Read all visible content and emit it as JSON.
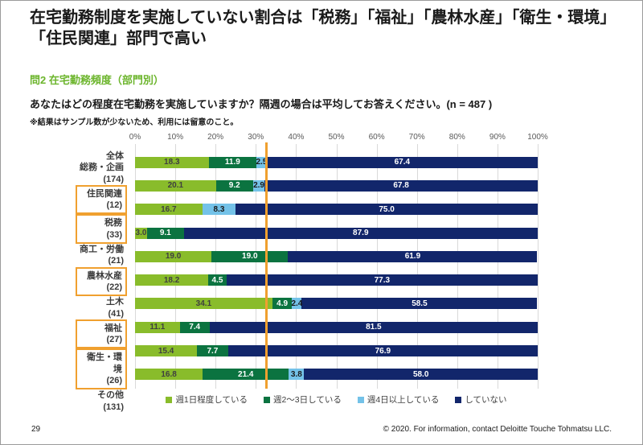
{
  "slide": {
    "title": "在宅勤務制度を実施していない割合は「税務」「福祉」「農林水産」「衛生・環境」「住民関連」部門で高い",
    "subtitle": "問2 在宅勤務頻度（部門別）",
    "question": "あなたはどの程度在宅勤務を実施していますか？隔週の場合は平均してお答えください。(n = 487 )",
    "note": "※結果はサンプル数が少ないため、利用には留意のこと。",
    "page_number": "29",
    "copyright": "© 2020. For information, contact Deloitte Touche Tohmatsu LLC."
  },
  "colors": {
    "subtitle_green": "#6cb52c",
    "highlight_orange": "#f0a02f",
    "grid_gray": "#d9d9d9",
    "label_on_series": [
      "#3f3f3f",
      "#ffffff",
      "#1a1a1a",
      "#ffffff"
    ]
  },
  "chart_data": {
    "type": "bar",
    "stacked": true,
    "orientation": "horizontal",
    "x_axis": {
      "min": 0,
      "max": 100,
      "ticks": [
        "0%",
        "10%",
        "20%",
        "30%",
        "40%",
        "50%",
        "60%",
        "70%",
        "80%",
        "90%",
        "100%"
      ]
    },
    "categories": [
      {
        "label": "全体",
        "count": "",
        "highlighted": false
      },
      {
        "label": "総務・企画",
        "count": "(174)",
        "highlighted": false
      },
      {
        "label": "住民関連",
        "count": "(12)",
        "highlighted": true
      },
      {
        "label": "税務",
        "count": "(33)",
        "highlighted": true
      },
      {
        "label": "商工・労働",
        "count": "(21)",
        "highlighted": false
      },
      {
        "label": "農林水産",
        "count": "(22)",
        "highlighted": true
      },
      {
        "label": "土木",
        "count": "(41)",
        "highlighted": false
      },
      {
        "label": "福祉",
        "count": "(27)",
        "highlighted": true
      },
      {
        "label": "衛生・環境",
        "count": "(26)",
        "highlighted": true
      },
      {
        "label": "その他",
        "count": "(131)",
        "highlighted": false
      }
    ],
    "series": [
      {
        "name": "週1日程度している",
        "color": "#89bc2b",
        "values": [
          18.3,
          20.1,
          16.7,
          3.0,
          19.0,
          18.2,
          34.1,
          11.1,
          15.4,
          16.8
        ]
      },
      {
        "name": "週2～3日している",
        "color": "#0b7340",
        "values": [
          11.9,
          9.2,
          0,
          9.1,
          19.0,
          4.5,
          4.9,
          7.4,
          7.7,
          21.4
        ]
      },
      {
        "name": "週4日以上している",
        "color": "#74c2e8",
        "values": [
          2.5,
          2.9,
          8.3,
          0,
          0,
          0,
          2.4,
          0,
          0,
          3.8
        ]
      },
      {
        "name": "していない",
        "color": "#12266b",
        "values": [
          67.4,
          67.8,
          75.0,
          87.9,
          61.9,
          77.3,
          58.5,
          81.5,
          76.9,
          58.0
        ]
      }
    ],
    "reference_line": 32.6,
    "legend_position": "bottom",
    "grid": true
  }
}
